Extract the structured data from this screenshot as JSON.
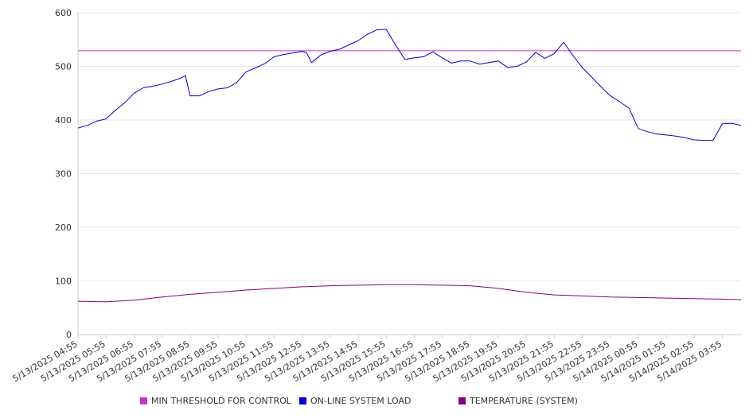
{
  "chart_data": {
    "type": "line",
    "title": "",
    "xlabel": "",
    "ylabel": "",
    "ylim": [
      0,
      600
    ],
    "yticks": [
      0,
      100,
      200,
      300,
      400,
      500,
      600
    ],
    "grid": true,
    "legend_position": "bottom",
    "x_tick_labels": [
      "5/13/2025 04:55",
      "5/13/2025 05:55",
      "5/13/2025 06:55",
      "5/13/2025 07:55",
      "5/13/2025 08:55",
      "5/13/2025 09:55",
      "5/13/2025 10:55",
      "5/13/2025 11:55",
      "5/13/2025 12:55",
      "5/13/2025 13:55",
      "5/13/2025 14:55",
      "5/13/2025 15:55",
      "5/13/2025 16:55",
      "5/13/2025 17:55",
      "5/13/2025 18:55",
      "5/13/2025 19:55",
      "5/13/2025 20:55",
      "5/13/2025 21:55",
      "5/13/2025 22:55",
      "5/13/2025 23:55",
      "5/14/2025 00:55",
      "5/14/2025 01:55",
      "5/14/2025 02:55",
      "5/14/2025 03:55"
    ],
    "series": [
      {
        "name": "MIN THRESHOLD FOR CONTROL",
        "color": "#cc33cc",
        "x": [
          "5/13/2025 04:55",
          "5/14/2025 04:35"
        ],
        "values": [
          529,
          529
        ]
      },
      {
        "name": "ON-LINE SYSTEM LOAD",
        "color": "#0000cc",
        "x": [
          "5/13/2025 04:55",
          "5/13/2025 05:15",
          "5/13/2025 05:35",
          "5/13/2025 05:55",
          "5/13/2025 06:15",
          "5/13/2025 06:35",
          "5/13/2025 06:55",
          "5/13/2025 07:15",
          "5/13/2025 07:35",
          "5/13/2025 07:55",
          "5/13/2025 08:15",
          "5/13/2025 08:35",
          "5/13/2025 08:45",
          "5/13/2025 08:55",
          "5/13/2025 09:15",
          "5/13/2025 09:35",
          "5/13/2025 09:55",
          "5/13/2025 10:15",
          "5/13/2025 10:35",
          "5/13/2025 10:55",
          "5/13/2025 11:15",
          "5/13/2025 11:35",
          "5/13/2025 11:55",
          "5/13/2025 12:15",
          "5/13/2025 12:35",
          "5/13/2025 12:55",
          "5/13/2025 13:05",
          "5/13/2025 13:15",
          "5/13/2025 13:35",
          "5/13/2025 13:55",
          "5/13/2025 14:15",
          "5/13/2025 14:35",
          "5/13/2025 14:55",
          "5/13/2025 15:15",
          "5/13/2025 15:35",
          "5/13/2025 15:55",
          "5/13/2025 16:15",
          "5/13/2025 16:35",
          "5/13/2025 16:55",
          "5/13/2025 17:15",
          "5/13/2025 17:35",
          "5/13/2025 17:55",
          "5/13/2025 18:15",
          "5/13/2025 18:35",
          "5/13/2025 18:55",
          "5/13/2025 19:15",
          "5/13/2025 19:35",
          "5/13/2025 19:55",
          "5/13/2025 20:15",
          "5/13/2025 20:35",
          "5/13/2025 20:55",
          "5/13/2025 21:15",
          "5/13/2025 21:35",
          "5/13/2025 21:55",
          "5/13/2025 22:15",
          "5/13/2025 22:35",
          "5/13/2025 22:55",
          "5/13/2025 23:15",
          "5/13/2025 23:35",
          "5/13/2025 23:55",
          "5/14/2025 00:15",
          "5/14/2025 00:35",
          "5/14/2025 00:55",
          "5/14/2025 01:15",
          "5/14/2025 01:35",
          "5/14/2025 01:55",
          "5/14/2025 02:15",
          "5/14/2025 02:35",
          "5/14/2025 02:55",
          "5/14/2025 03:15",
          "5/14/2025 03:35",
          "5/14/2025 03:55",
          "5/14/2025 04:15",
          "5/14/2025 04:35"
        ],
        "values": [
          385,
          390,
          398,
          402,
          418,
          432,
          450,
          460,
          463,
          467,
          472,
          478,
          483,
          445,
          445,
          453,
          458,
          460,
          470,
          490,
          497,
          505,
          518,
          522,
          525,
          528,
          525,
          507,
          521,
          528,
          532,
          540,
          548,
          560,
          568,
          569,
          540,
          513,
          516,
          518,
          527,
          516,
          506,
          510,
          510,
          504,
          507,
          510,
          498,
          500,
          508,
          526,
          515,
          524,
          545,
          520,
          498,
          480,
          462,
          445,
          434,
          422,
          384,
          378,
          374,
          372,
          370,
          367,
          363,
          362,
          362,
          393,
          394,
          390
        ]
      },
      {
        "name": "TEMPERATURE (SYSTEM)",
        "color": "#800080",
        "x": [
          "5/13/2025 04:55",
          "5/13/2025 05:55",
          "5/13/2025 06:55",
          "5/13/2025 07:55",
          "5/13/2025 08:55",
          "5/13/2025 09:55",
          "5/13/2025 10:55",
          "5/13/2025 11:55",
          "5/13/2025 12:55",
          "5/13/2025 13:55",
          "5/13/2025 14:55",
          "5/13/2025 15:55",
          "5/13/2025 16:55",
          "5/13/2025 17:55",
          "5/13/2025 18:55",
          "5/13/2025 19:55",
          "5/13/2025 20:55",
          "5/13/2025 21:55",
          "5/13/2025 22:55",
          "5/13/2025 23:55",
          "5/14/2025 00:55",
          "5/14/2025 01:55",
          "5/14/2025 02:55",
          "5/14/2025 03:55",
          "5/14/2025 04:35"
        ],
        "values": [
          62,
          61,
          64,
          70,
          75,
          79,
          83,
          86,
          89,
          91,
          92,
          93,
          93,
          92,
          91,
          86,
          79,
          74,
          72,
          70,
          69,
          68,
          67,
          66,
          65
        ]
      }
    ]
  }
}
